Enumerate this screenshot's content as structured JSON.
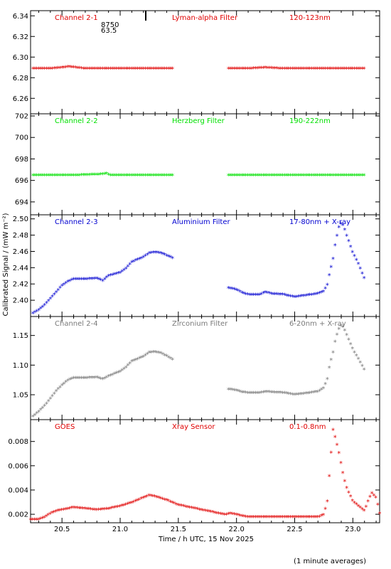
{
  "figure": {
    "ylabel": "Calibrated Signal / (mW m⁻²)",
    "xlabel": "Time / h UTC, 15 Nov 2025",
    "footnote": "(1 minute averages)",
    "x_ticks": [
      "20.5",
      "21.0",
      "21.5",
      "22.0",
      "22.5",
      "23.0"
    ],
    "marker": {
      "label_top": "8750",
      "label_bottom": "63.5",
      "x": 21.22
    },
    "xlim": [
      20.23,
      23.23
    ]
  },
  "chart_data": [
    {
      "type": "scatter",
      "channel": "Channel 2-1",
      "filter": "Lyman-alpha Filter",
      "band": "120-123nm",
      "color": "#e00000",
      "ylim": [
        6.245,
        6.345
      ],
      "y_ticks": [
        "6.26",
        "6.28",
        "6.30",
        "6.32",
        "6.34"
      ],
      "gap": [
        21.45,
        21.93
      ],
      "series": [
        {
          "x": [
            20.25,
            20.4,
            20.5,
            20.56,
            20.62,
            20.7,
            20.85,
            21.0,
            21.2,
            21.45
          ],
          "y": [
            6.288,
            6.288,
            6.289,
            6.29,
            6.289,
            6.288,
            6.288,
            6.288,
            6.288,
            6.288
          ]
        },
        {
          "x": [
            21.93,
            22.1,
            22.25,
            22.4,
            22.6,
            22.8,
            23.0,
            23.1
          ],
          "y": [
            6.288,
            6.288,
            6.289,
            6.288,
            6.288,
            6.288,
            6.288,
            6.288
          ]
        }
      ]
    },
    {
      "type": "scatter",
      "channel": "Channel 2-2",
      "filter": "Herzberg Filter",
      "band": "190-222nm",
      "color": "#00e000",
      "ylim": [
        692.8,
        702.2
      ],
      "y_ticks": [
        "694",
        "696",
        "698",
        "700",
        "702"
      ],
      "gap": [
        21.45,
        21.93
      ],
      "series": [
        {
          "x": [
            20.25,
            20.6,
            20.85,
            20.88,
            20.91,
            21.2,
            21.45
          ],
          "y": [
            696.4,
            696.4,
            696.5,
            696.6,
            696.4,
            696.4,
            696.4
          ]
        },
        {
          "x": [
            21.93,
            22.2,
            22.5,
            22.8,
            23.1
          ],
          "y": [
            696.4,
            696.4,
            696.4,
            696.4,
            696.4
          ]
        }
      ]
    },
    {
      "type": "scatter",
      "channel": "Channel 2-3",
      "filter": "Aluminium Filter",
      "band": "17-80nm + X-ray",
      "color": "#0000d0",
      "ylim": [
        2.38,
        2.505
      ],
      "y_ticks": [
        "2.40",
        "2.42",
        "2.44",
        "2.46",
        "2.48",
        "2.50"
      ],
      "gap": [
        21.45,
        21.93
      ],
      "series": [
        {
          "x": [
            20.25,
            20.3,
            20.35,
            20.4,
            20.45,
            20.5,
            20.55,
            20.6,
            20.7,
            20.8,
            20.85,
            20.9,
            21.0,
            21.05,
            21.1,
            21.2,
            21.25,
            21.3,
            21.35,
            21.4,
            21.45
          ],
          "y": [
            2.383,
            2.387,
            2.393,
            2.401,
            2.409,
            2.417,
            2.422,
            2.425,
            2.425,
            2.426,
            2.423,
            2.429,
            2.433,
            2.438,
            2.446,
            2.452,
            2.457,
            2.458,
            2.457,
            2.454,
            2.451
          ]
        },
        {
          "x": [
            21.93,
            22.0,
            22.05,
            22.1,
            22.2,
            22.25,
            22.3,
            22.4,
            22.5,
            22.6,
            22.7,
            22.75,
            22.78,
            22.8,
            22.83,
            22.85,
            22.88,
            22.9,
            22.92,
            22.95,
            23.0,
            23.05,
            23.1
          ],
          "y": [
            2.414,
            2.412,
            2.408,
            2.406,
            2.406,
            2.409,
            2.407,
            2.406,
            2.403,
            2.405,
            2.407,
            2.41,
            2.418,
            2.432,
            2.45,
            2.47,
            2.489,
            2.494,
            2.49,
            2.477,
            2.457,
            2.443,
            2.425
          ]
        }
      ]
    },
    {
      "type": "scatter",
      "channel": "Channel 2-4",
      "filter": "Zirconium Filter",
      "band": "6-20nm + X-ray",
      "color": "#7a7a7a",
      "ylim": [
        1.008,
        1.182
      ],
      "y_ticks": [
        "1.05",
        "1.10",
        "1.15"
      ],
      "gap": [
        21.45,
        21.93
      ],
      "series": [
        {
          "x": [
            20.25,
            20.3,
            20.35,
            20.4,
            20.45,
            20.5,
            20.55,
            20.6,
            20.7,
            20.8,
            20.85,
            20.9,
            21.0,
            21.05,
            21.1,
            21.2,
            21.25,
            21.3,
            21.35,
            21.4,
            21.45
          ],
          "y": [
            1.012,
            1.02,
            1.03,
            1.042,
            1.055,
            1.065,
            1.073,
            1.077,
            1.077,
            1.078,
            1.075,
            1.08,
            1.088,
            1.095,
            1.105,
            1.113,
            1.12,
            1.121,
            1.119,
            1.114,
            1.108
          ]
        },
        {
          "x": [
            21.93,
            22.0,
            22.05,
            22.1,
            22.2,
            22.25,
            22.3,
            22.4,
            22.5,
            22.6,
            22.7,
            22.75,
            22.78,
            22.8,
            22.83,
            22.85,
            22.88,
            22.9,
            22.92,
            22.95,
            23.0,
            23.05,
            23.1
          ],
          "y": [
            1.058,
            1.056,
            1.053,
            1.052,
            1.052,
            1.054,
            1.053,
            1.052,
            1.049,
            1.051,
            1.054,
            1.06,
            1.075,
            1.098,
            1.12,
            1.142,
            1.16,
            1.166,
            1.162,
            1.148,
            1.125,
            1.108,
            1.09
          ]
        }
      ]
    },
    {
      "type": "scatter",
      "channel": "GOES",
      "filter": "Xray Sensor",
      "band": "0.1-0.8nm",
      "color": "#e00000",
      "ylim": [
        0.0013,
        0.0098
      ],
      "y_ticks": [
        "0.002",
        "0.004",
        "0.006",
        "0.008"
      ],
      "gap": null,
      "series": [
        {
          "x": [
            20.23,
            20.3,
            20.35,
            20.4,
            20.45,
            20.5,
            20.6,
            20.7,
            20.8,
            20.9,
            21.0,
            21.1,
            21.2,
            21.25,
            21.3,
            21.4,
            21.5,
            21.6,
            21.7,
            21.8,
            21.9,
            21.95,
            22.0,
            22.1,
            22.2,
            22.3,
            22.4,
            22.5,
            22.6,
            22.7,
            22.75,
            22.78,
            22.8,
            22.83,
            22.85,
            22.88,
            22.9,
            22.92,
            22.95,
            23.0,
            23.05,
            23.1,
            23.13,
            23.16,
            23.2,
            23.23
          ],
          "y": [
            0.0015,
            0.0015,
            0.0017,
            0.002,
            0.0022,
            0.0023,
            0.0025,
            0.0024,
            0.0023,
            0.0024,
            0.0026,
            0.0029,
            0.0033,
            0.0035,
            0.0034,
            0.0031,
            0.0027,
            0.0025,
            0.0023,
            0.0021,
            0.0019,
            0.002,
            0.0019,
            0.0017,
            0.0017,
            0.0017,
            0.0017,
            0.0017,
            0.0017,
            0.0017,
            0.0019,
            0.003,
            0.0055,
            0.0089,
            0.0082,
            0.007,
            0.006,
            0.005,
            0.004,
            0.003,
            0.0026,
            0.0022,
            0.003,
            0.0037,
            0.0033,
            0.002
          ]
        }
      ]
    }
  ]
}
